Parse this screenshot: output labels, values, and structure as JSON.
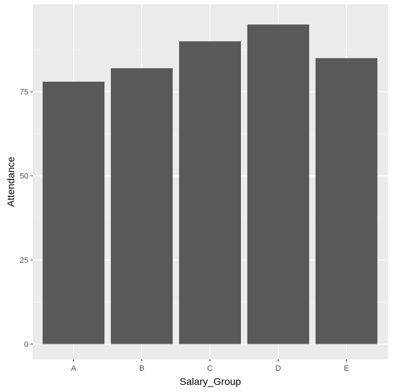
{
  "chart_data": {
    "type": "bar",
    "title": "",
    "xlabel": "Salary_Group",
    "ylabel": "Attendance",
    "categories": [
      "A",
      "B",
      "C",
      "D",
      "E"
    ],
    "values": [
      78,
      82,
      90,
      95,
      85
    ],
    "ylim": [
      0,
      100
    ],
    "y_ticks": [
      0,
      25,
      50,
      75
    ],
    "y_tick_labels": [
      "0",
      "25",
      "50",
      "75"
    ],
    "grid": true,
    "legend": "none",
    "bar_color": "#595959",
    "panel_background": "#EBEBEB"
  }
}
